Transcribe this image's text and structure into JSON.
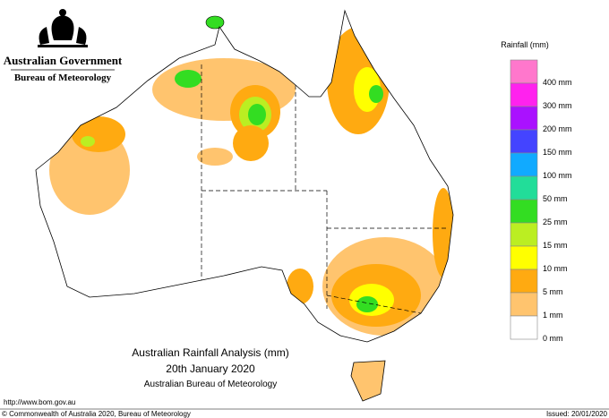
{
  "header": {
    "government": "Australian Government",
    "bureau": "Bureau of Meteorology"
  },
  "legend": {
    "title": "Rainfall (mm)",
    "items": [
      {
        "label": "400 mm",
        "color": "#ff77cc"
      },
      {
        "label": "300 mm",
        "color": "#ff22ee"
      },
      {
        "label": "200 mm",
        "color": "#aa11ff"
      },
      {
        "label": "150 mm",
        "color": "#4444ff"
      },
      {
        "label": "100 mm",
        "color": "#11aaff"
      },
      {
        "label": "50 mm",
        "color": "#22dd99"
      },
      {
        "label": "25 mm",
        "color": "#33dd22"
      },
      {
        "label": "15 mm",
        "color": "#bbee22"
      },
      {
        "label": "10 mm",
        "color": "#ffff00"
      },
      {
        "label": "5 mm",
        "color": "#ffaa11"
      },
      {
        "label": "1 mm",
        "color": "#ffc46e"
      },
      {
        "label": "0 mm",
        "color": "#ffffff"
      }
    ]
  },
  "caption": {
    "title": "Australian Rainfall Analysis (mm)",
    "date": "20th January 2020",
    "source": "Australian Bureau of Meteorology"
  },
  "footer": {
    "url": "http://www.bom.gov.au",
    "copyright": "© Commonwealth of Australia 2020, Bureau of Meteorology",
    "issued": "Issued: 20/01/2020"
  }
}
